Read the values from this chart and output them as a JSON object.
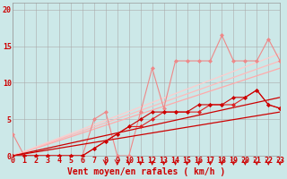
{
  "background_color": "#cce8e8",
  "grid_color": "#aaaaaa",
  "xlabel": "Vent moyen/en rafales ( km/h )",
  "xlabel_color": "#cc0000",
  "xlabel_fontsize": 7,
  "tick_color": "#cc0000",
  "tick_fontsize": 6,
  "yticks": [
    0,
    5,
    10,
    15,
    20
  ],
  "xticks": [
    0,
    1,
    2,
    3,
    4,
    5,
    6,
    7,
    8,
    9,
    10,
    11,
    12,
    13,
    14,
    15,
    16,
    17,
    18,
    19,
    20,
    21,
    22,
    23
  ],
  "xlim": [
    0,
    23
  ],
  "ylim": [
    0,
    21
  ],
  "series": [
    {
      "x": [
        0,
        23
      ],
      "y": [
        0,
        6
      ],
      "color": "#cc0000",
      "linewidth": 0.9,
      "marker": null,
      "zorder": 4
    },
    {
      "x": [
        0,
        23
      ],
      "y": [
        0,
        8
      ],
      "color": "#cc0000",
      "linewidth": 0.9,
      "marker": null,
      "zorder": 4
    },
    {
      "x": [
        0,
        23
      ],
      "y": [
        0,
        12
      ],
      "color": "#ffaaaa",
      "linewidth": 0.9,
      "marker": null,
      "zorder": 1
    },
    {
      "x": [
        0,
        23
      ],
      "y": [
        0,
        13
      ],
      "color": "#ffbbbb",
      "linewidth": 0.9,
      "marker": null,
      "zorder": 1
    },
    {
      "x": [
        0,
        23
      ],
      "y": [
        0,
        14
      ],
      "color": "#ffcccc",
      "linewidth": 0.9,
      "marker": null,
      "zorder": 1
    },
    {
      "x": [
        0,
        1,
        2,
        3,
        4,
        5,
        6,
        7,
        8,
        9,
        10,
        11,
        12,
        13,
        14,
        15,
        16,
        17,
        18,
        19,
        20,
        21,
        22,
        23
      ],
      "y": [
        0,
        0,
        0,
        0,
        0,
        0,
        0,
        1,
        2,
        3,
        4,
        4,
        5,
        6,
        6,
        6,
        6,
        7,
        7,
        7,
        8,
        9,
        7,
        6.5
      ],
      "color": "#dd2222",
      "linewidth": 0.8,
      "marker": "D",
      "markersize": 2,
      "zorder": 5
    },
    {
      "x": [
        0,
        1,
        2,
        3,
        4,
        5,
        6,
        7,
        8,
        9,
        10,
        11,
        12,
        13,
        14,
        15,
        16,
        17,
        18,
        19,
        20,
        21,
        22,
        23
      ],
      "y": [
        0,
        0,
        0,
        0,
        0,
        0,
        0,
        1,
        2,
        3,
        4,
        5,
        6,
        6,
        6,
        6,
        7,
        7,
        7,
        8,
        8,
        9,
        7,
        6.5
      ],
      "color": "#cc0000",
      "linewidth": 0.8,
      "marker": "D",
      "markersize": 2,
      "zorder": 5
    },
    {
      "x": [
        0,
        1,
        2,
        3,
        4,
        5,
        6,
        7,
        8,
        9,
        10,
        11,
        12,
        13,
        14,
        15,
        16,
        17,
        18,
        19,
        20,
        21,
        22,
        23
      ],
      "y": [
        3,
        0,
        0,
        0,
        0,
        0,
        0,
        5,
        6,
        0,
        0,
        6,
        12,
        6.5,
        13,
        13,
        13,
        13,
        16.5,
        13,
        13,
        13,
        16,
        13
      ],
      "color": "#ee8888",
      "linewidth": 0.8,
      "marker": "D",
      "markersize": 2,
      "zorder": 3
    }
  ],
  "wind_arrows_x": [
    8,
    9,
    10,
    11,
    12,
    13,
    14,
    15,
    16,
    17,
    18,
    19,
    20,
    21,
    22,
    23
  ],
  "wind_arrows_color": "#cc0000"
}
